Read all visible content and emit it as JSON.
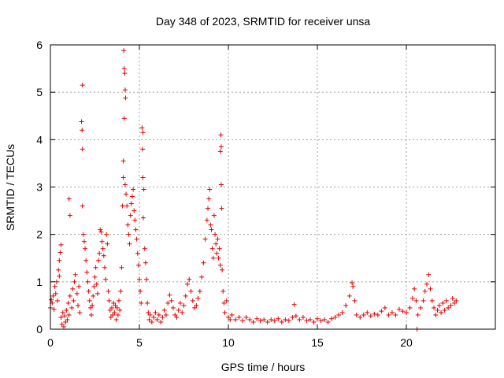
{
  "chart_data": {
    "type": "scatter",
    "title": "Day 348 of 2023, SRMTID for receiver unsa",
    "xlabel": "GPS time / hours",
    "ylabel": "SRMTID / TECUs",
    "xlim": [
      0,
      25
    ],
    "ylim": [
      0,
      6
    ],
    "xticks": [
      0,
      5,
      10,
      15,
      20
    ],
    "yticks": [
      0,
      1,
      2,
      3,
      4,
      5,
      6
    ],
    "grid": true,
    "marker": "+",
    "color": "#e00000",
    "series": [
      {
        "name": "SRMTID",
        "points": [
          [
            0.0,
            0.45
          ],
          [
            0.05,
            0.62
          ],
          [
            0.1,
            0.55
          ],
          [
            0.15,
            0.7
          ],
          [
            0.2,
            0.42
          ],
          [
            0.25,
            0.9
          ],
          [
            0.3,
            0.75
          ],
          [
            0.35,
            1.0
          ],
          [
            0.4,
            0.6
          ],
          [
            0.45,
            1.25
          ],
          [
            0.5,
            1.45
          ],
          [
            0.55,
            1.62
          ],
          [
            0.6,
            1.78
          ],
          [
            0.5,
            1.12
          ],
          [
            0.6,
            0.25
          ],
          [
            0.65,
            0.1
          ],
          [
            0.7,
            0.35
          ],
          [
            0.75,
            0.05
          ],
          [
            0.8,
            0.28
          ],
          [
            0.85,
            0.15
          ],
          [
            0.9,
            0.4
          ],
          [
            0.95,
            0.2
          ],
          [
            1.0,
            0.55
          ],
          [
            1.05,
            0.3
          ],
          [
            1.1,
            0.7
          ],
          [
            1.2,
            0.45
          ],
          [
            1.25,
            0.85
          ],
          [
            1.3,
            0.6
          ],
          [
            1.35,
            1.0
          ],
          [
            1.4,
            1.15
          ],
          [
            1.5,
            0.75
          ],
          [
            1.55,
            0.5
          ],
          [
            1.6,
            0.9
          ],
          [
            1.65,
            0.35
          ],
          [
            1.05,
            2.75
          ],
          [
            1.1,
            2.4
          ],
          [
            1.8,
            5.15
          ],
          [
            1.75,
            4.38
          ],
          [
            1.78,
            4.2
          ],
          [
            1.8,
            3.8
          ],
          [
            1.8,
            2.6
          ],
          [
            1.85,
            2.0
          ],
          [
            1.9,
            1.85
          ],
          [
            1.95,
            1.7
          ],
          [
            2.0,
            1.45
          ],
          [
            2.05,
            1.2
          ],
          [
            2.1,
            1.0
          ],
          [
            2.15,
            0.8
          ],
          [
            2.2,
            0.6
          ],
          [
            2.25,
            0.45
          ],
          [
            2.3,
            0.3
          ],
          [
            2.35,
            0.5
          ],
          [
            2.4,
            0.7
          ],
          [
            2.45,
            0.9
          ],
          [
            2.5,
            1.1
          ],
          [
            2.55,
            1.3
          ],
          [
            2.6,
            0.95
          ],
          [
            2.65,
            0.75
          ],
          [
            2.7,
            1.45
          ],
          [
            2.75,
            1.6
          ],
          [
            2.8,
            2.1
          ],
          [
            2.85,
            2.05
          ],
          [
            2.9,
            1.85
          ],
          [
            2.95,
            1.7
          ],
          [
            3.0,
            1.55
          ],
          [
            3.05,
            1.3
          ],
          [
            3.1,
            1.05
          ],
          [
            3.15,
            2.0
          ],
          [
            3.2,
            1.8
          ],
          [
            3.25,
            0.8
          ],
          [
            3.3,
            0.6
          ],
          [
            3.35,
            0.4
          ],
          [
            3.4,
            0.25
          ],
          [
            3.45,
            0.45
          ],
          [
            3.5,
            0.3
          ],
          [
            3.55,
            0.55
          ],
          [
            3.6,
            0.35
          ],
          [
            3.65,
            0.5
          ],
          [
            3.7,
            0.2
          ],
          [
            3.75,
            0.45
          ],
          [
            3.8,
            0.3
          ],
          [
            3.85,
            0.6
          ],
          [
            3.9,
            0.4
          ],
          [
            3.95,
            0.8
          ],
          [
            4.0,
            1.3
          ],
          [
            4.05,
            2.6
          ],
          [
            4.1,
            3.2
          ],
          [
            4.12,
            5.88
          ],
          [
            4.15,
            5.5
          ],
          [
            4.18,
            5.4
          ],
          [
            4.2,
            5.05
          ],
          [
            4.22,
            4.88
          ],
          [
            4.15,
            4.45
          ],
          [
            4.1,
            3.55
          ],
          [
            4.2,
            3.05
          ],
          [
            4.25,
            2.85
          ],
          [
            4.3,
            2.6
          ],
          [
            4.35,
            2.2
          ],
          [
            4.4,
            2.0
          ],
          [
            4.45,
            1.8
          ],
          [
            4.5,
            2.4
          ],
          [
            4.55,
            2.65
          ],
          [
            4.6,
            2.8
          ],
          [
            4.65,
            2.95
          ],
          [
            4.7,
            2.5
          ],
          [
            4.75,
            2.3
          ],
          [
            4.8,
            2.1
          ],
          [
            4.85,
            1.9
          ],
          [
            4.9,
            1.6
          ],
          [
            4.95,
            1.35
          ],
          [
            5.0,
            1.05
          ],
          [
            5.05,
            0.8
          ],
          [
            5.1,
            0.55
          ],
          [
            5.15,
            4.25
          ],
          [
            5.2,
            4.15
          ],
          [
            5.18,
            3.8
          ],
          [
            5.2,
            3.2
          ],
          [
            5.25,
            2.95
          ],
          [
            5.22,
            2.35
          ],
          [
            5.3,
            1.7
          ],
          [
            5.35,
            1.4
          ],
          [
            5.4,
            1.05
          ],
          [
            5.45,
            0.55
          ],
          [
            5.5,
            0.35
          ],
          [
            5.55,
            0.2
          ],
          [
            5.6,
            0.3
          ],
          [
            5.7,
            0.15
          ],
          [
            5.8,
            0.25
          ],
          [
            5.9,
            0.35
          ],
          [
            6.0,
            0.2
          ],
          [
            6.1,
            0.3
          ],
          [
            6.2,
            0.15
          ],
          [
            6.3,
            0.25
          ],
          [
            6.4,
            0.4
          ],
          [
            6.5,
            0.3
          ],
          [
            6.6,
            0.55
          ],
          [
            6.7,
            0.72
          ],
          [
            6.8,
            0.6
          ],
          [
            6.9,
            0.45
          ],
          [
            7.0,
            0.3
          ],
          [
            7.1,
            0.25
          ],
          [
            7.2,
            0.4
          ],
          [
            7.3,
            0.55
          ],
          [
            7.4,
            0.35
          ],
          [
            7.5,
            0.5
          ],
          [
            7.6,
            0.7
          ],
          [
            7.7,
            0.95
          ],
          [
            7.8,
            1.05
          ],
          [
            7.9,
            0.8
          ],
          [
            8.0,
            0.6
          ],
          [
            8.1,
            0.45
          ],
          [
            8.2,
            0.5
          ],
          [
            8.3,
            0.65
          ],
          [
            8.4,
            0.8
          ],
          [
            8.5,
            1.1
          ],
          [
            8.6,
            1.4
          ],
          [
            8.7,
            1.9
          ],
          [
            8.8,
            2.3
          ],
          [
            8.85,
            2.55
          ],
          [
            8.9,
            2.75
          ],
          [
            8.95,
            2.95
          ],
          [
            9.0,
            2.2
          ],
          [
            9.05,
            2.1
          ],
          [
            9.1,
            1.7
          ],
          [
            9.15,
            1.5
          ],
          [
            9.2,
            2.4
          ],
          [
            9.25,
            2.0
          ],
          [
            9.3,
            1.8
          ],
          [
            9.35,
            1.6
          ],
          [
            9.4,
            1.9
          ],
          [
            9.45,
            1.5
          ],
          [
            9.5,
            1.7
          ],
          [
            9.55,
            1.35
          ],
          [
            9.58,
            4.1
          ],
          [
            9.6,
            3.85
          ],
          [
            9.55,
            3.75
          ],
          [
            9.6,
            3.05
          ],
          [
            9.62,
            2.55
          ],
          [
            9.65,
            1.25
          ],
          [
            9.7,
            0.8
          ],
          [
            9.75,
            0.55
          ],
          [
            9.8,
            0.35
          ],
          [
            9.9,
            0.6
          ],
          [
            10.0,
            0.25
          ],
          [
            10.1,
            0.2
          ],
          [
            10.2,
            0.3
          ],
          [
            10.4,
            0.2
          ],
          [
            10.6,
            0.25
          ],
          [
            10.8,
            0.18
          ],
          [
            11.0,
            0.25
          ],
          [
            11.2,
            0.2
          ],
          [
            11.4,
            0.15
          ],
          [
            11.6,
            0.22
          ],
          [
            11.8,
            0.18
          ],
          [
            12.0,
            0.2
          ],
          [
            12.2,
            0.15
          ],
          [
            12.4,
            0.2
          ],
          [
            12.6,
            0.18
          ],
          [
            12.8,
            0.22
          ],
          [
            13.0,
            0.15
          ],
          [
            13.2,
            0.2
          ],
          [
            13.4,
            0.18
          ],
          [
            13.6,
            0.25
          ],
          [
            13.7,
            0.52
          ],
          [
            13.8,
            0.28
          ],
          [
            14.0,
            0.2
          ],
          [
            14.2,
            0.25
          ],
          [
            14.4,
            0.18
          ],
          [
            14.6,
            0.2
          ],
          [
            14.8,
            0.15
          ],
          [
            15.0,
            0.22
          ],
          [
            15.2,
            0.18
          ],
          [
            15.4,
            0.2
          ],
          [
            15.6,
            0.15
          ],
          [
            15.8,
            0.22
          ],
          [
            16.0,
            0.25
          ],
          [
            16.2,
            0.3
          ],
          [
            16.4,
            0.35
          ],
          [
            16.6,
            0.5
          ],
          [
            16.8,
            0.7
          ],
          [
            16.95,
            0.98
          ],
          [
            17.0,
            0.9
          ],
          [
            17.1,
            0.6
          ],
          [
            17.2,
            0.3
          ],
          [
            17.4,
            0.25
          ],
          [
            17.6,
            0.3
          ],
          [
            17.8,
            0.35
          ],
          [
            18.0,
            0.28
          ],
          [
            18.2,
            0.32
          ],
          [
            18.4,
            0.3
          ],
          [
            18.6,
            0.38
          ],
          [
            18.8,
            0.45
          ],
          [
            19.0,
            0.3
          ],
          [
            19.2,
            0.35
          ],
          [
            19.4,
            0.3
          ],
          [
            19.6,
            0.42
          ],
          [
            19.8,
            0.38
          ],
          [
            20.0,
            0.35
          ],
          [
            20.2,
            0.45
          ],
          [
            20.35,
            0.65
          ],
          [
            20.45,
            0.85
          ],
          [
            20.55,
            0.6
          ],
          [
            20.65,
            0.3
          ],
          [
            20.8,
            0.45
          ],
          [
            20.95,
            0.6
          ],
          [
            21.05,
            0.8
          ],
          [
            21.15,
            0.95
          ],
          [
            21.25,
            1.15
          ],
          [
            21.35,
            0.85
          ],
          [
            21.45,
            0.6
          ],
          [
            21.55,
            0.45
          ],
          [
            21.65,
            0.3
          ],
          [
            21.75,
            0.4
          ],
          [
            21.85,
            0.5
          ],
          [
            21.95,
            0.35
          ],
          [
            22.05,
            0.55
          ],
          [
            22.15,
            0.4
          ],
          [
            22.25,
            0.6
          ],
          [
            22.35,
            0.45
          ],
          [
            22.5,
            0.5
          ],
          [
            22.6,
            0.65
          ],
          [
            22.7,
            0.55
          ],
          [
            22.8,
            0.6
          ],
          [
            20.6,
            0.0
          ]
        ]
      }
    ]
  }
}
